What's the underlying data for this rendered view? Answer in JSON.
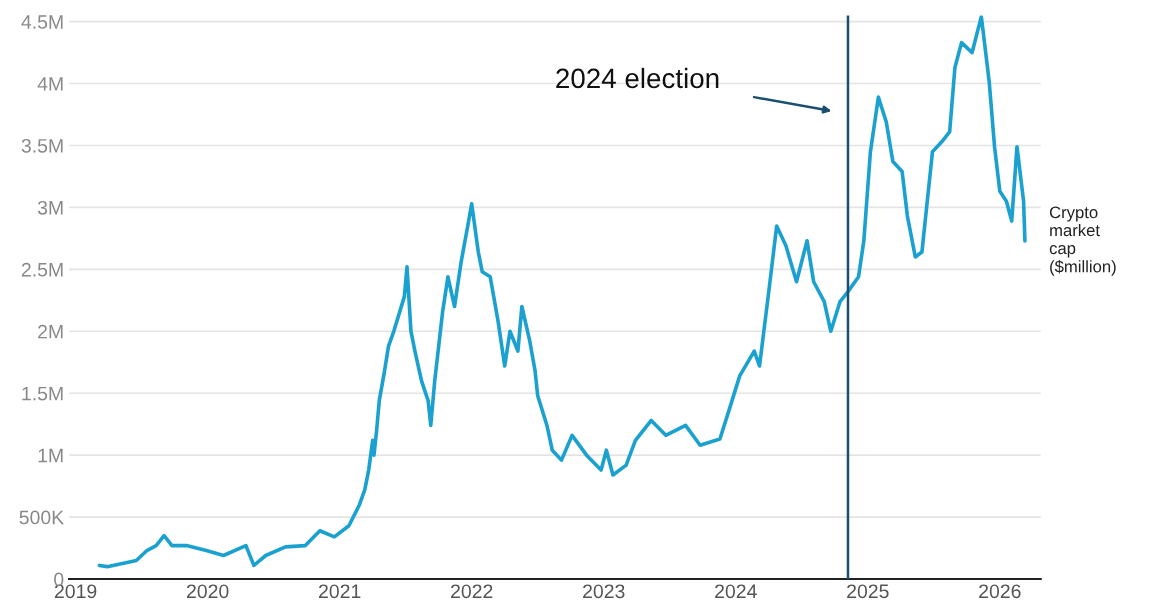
{
  "chart_data": {
    "type": "line",
    "x": [
      2019.18,
      2019.24,
      2019.46,
      2019.54,
      2019.61,
      2019.67,
      2019.73,
      2019.84,
      2019.99,
      2020.12,
      2020.29,
      2020.35,
      2020.44,
      2020.59,
      2020.74,
      2020.85,
      2020.96,
      2021.07,
      2021.15,
      2021.19,
      2021.22,
      2021.25,
      2021.26,
      2021.28,
      2021.3,
      2021.34,
      2021.37,
      2021.41,
      2021.49,
      2021.51,
      2021.54,
      2021.57,
      2021.62,
      2021.67,
      2021.69,
      2021.72,
      2021.78,
      2021.82,
      2021.87,
      2021.92,
      2021.97,
      2022.0,
      2022.05,
      2022.08,
      2022.14,
      2022.2,
      2022.25,
      2022.29,
      2022.35,
      2022.38,
      2022.44,
      2022.48,
      2022.5,
      2022.57,
      2022.61,
      2022.68,
      2022.76,
      2022.87,
      2022.98,
      2023.02,
      2023.07,
      2023.17,
      2023.24,
      2023.36,
      2023.47,
      2023.62,
      2023.73,
      2023.88,
      2023.96,
      2024.03,
      2024.14,
      2024.18,
      2024.25,
      2024.31,
      2024.38,
      2024.46,
      2024.54,
      2024.59,
      2024.67,
      2024.72,
      2024.79,
      2024.85,
      2024.93,
      2024.97,
      2025.02,
      2025.08,
      2025.14,
      2025.19,
      2025.26,
      2025.3,
      2025.36,
      2025.41,
      2025.49,
      2025.56,
      2025.62,
      2025.66,
      2025.71,
      2025.79,
      2025.86,
      2025.92,
      2025.96,
      2026.0,
      2026.05,
      2026.09,
      2026.13,
      2026.18,
      2026.19
    ],
    "series": [
      {
        "name": "Crypto\nmarket\ncap\n($million)",
        "color": "#1ba1cf",
        "values": [
          110000,
          100000,
          150000,
          230000,
          270000,
          350000,
          270000,
          270000,
          230000,
          190000,
          270000,
          110000,
          190000,
          260000,
          270000,
          390000,
          340000,
          430000,
          600000,
          720000,
          880000,
          1120000,
          1000000,
          1200000,
          1440000,
          1680000,
          1880000,
          2000000,
          2280000,
          2520000,
          2000000,
          1840000,
          1600000,
          1440000,
          1240000,
          1600000,
          2160000,
          2440000,
          2200000,
          2560000,
          2850000,
          3030000,
          2640000,
          2480000,
          2440000,
          2080000,
          1720000,
          2000000,
          1840000,
          2200000,
          1920000,
          1680000,
          1480000,
          1240000,
          1040000,
          960000,
          1160000,
          1000000,
          880000,
          1040000,
          840000,
          920000,
          1120000,
          1280000,
          1160000,
          1240000,
          1080000,
          1130000,
          1400000,
          1640000,
          1840000,
          1720000,
          2320000,
          2850000,
          2690000,
          2400000,
          2730000,
          2400000,
          2240000,
          2000000,
          2240000,
          2320000,
          2440000,
          2730000,
          3450000,
          3890000,
          3690000,
          3370000,
          3290000,
          2930000,
          2600000,
          2640000,
          3450000,
          3530000,
          3610000,
          4130000,
          4330000,
          4250000,
          4540000,
          4010000,
          3490000,
          3130000,
          3050000,
          2890000,
          3490000,
          3050000,
          2730000
        ]
      }
    ],
    "xlim": [
      2018.95,
      2026.31
    ],
    "xticks": [
      2019,
      2020,
      2021,
      2022,
      2023,
      2024,
      2025,
      2026
    ],
    "ylim": [
      0,
      4550000
    ],
    "yticks": [
      0,
      {
        "value": 500000,
        "label": "500K"
      },
      {
        "value": 1000000,
        "label": "1M"
      },
      {
        "value": 1500000,
        "label": "1.5M"
      },
      {
        "value": 2000000,
        "label": "2M"
      },
      {
        "value": 2500000,
        "label": "2.5M"
      },
      {
        "value": 3000000,
        "label": "3M"
      },
      {
        "value": 3500000,
        "label": "3.5M"
      },
      {
        "value": 4000000,
        "label": "4M"
      },
      {
        "value": 4500000,
        "label": "4.5M"
      }
    ],
    "grid": "y",
    "legend": false,
    "marker": "none",
    "line_style": "solid",
    "ref_lines": [
      {
        "axis": "x",
        "value": 2024.85,
        "color": "#1a4f72",
        "line_style": "solid"
      }
    ],
    "annotations": [
      "2024 election"
    ]
  }
}
